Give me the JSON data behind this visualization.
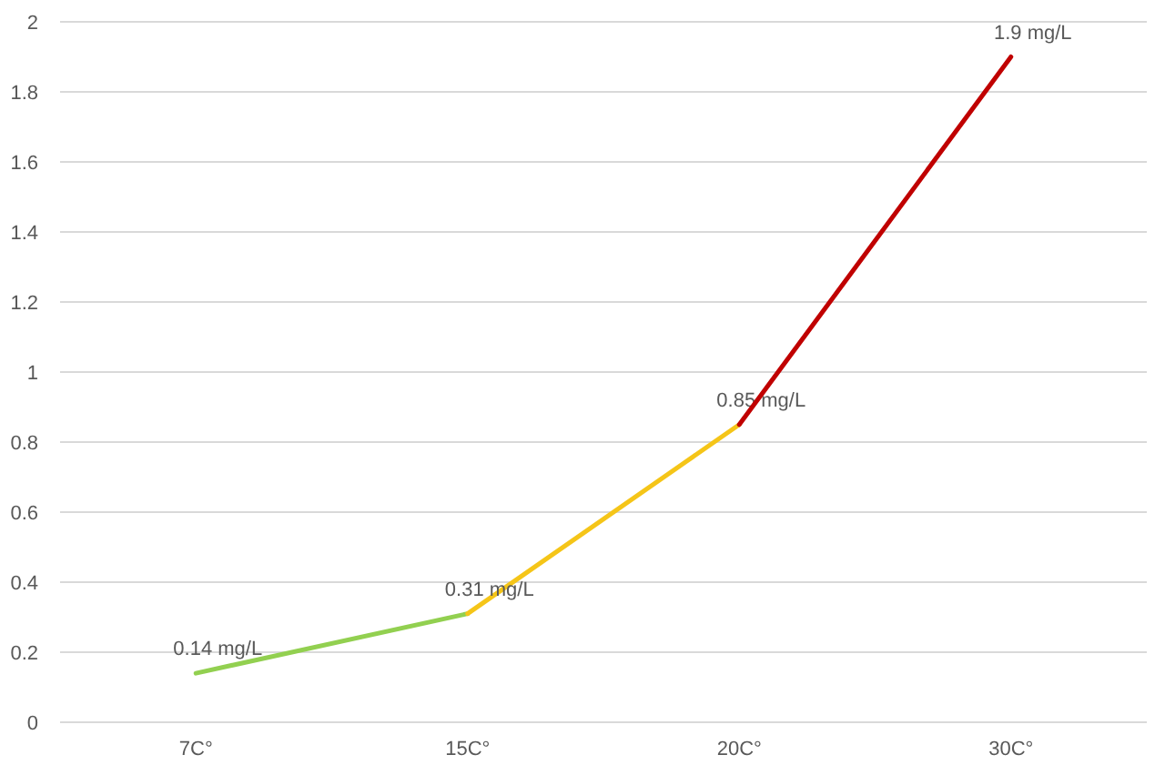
{
  "chart_data": {
    "type": "line",
    "categories": [
      "7C°",
      "15C°",
      "20C°",
      "30C°"
    ],
    "series": [
      {
        "color": "#92d050",
        "values": [
          0.14,
          0.31,
          null,
          null
        ],
        "value_labels": [
          "0.14 mg/L",
          null,
          null,
          null
        ]
      },
      {
        "color": "#f5c518",
        "values": [
          null,
          0.31,
          0.85,
          null
        ],
        "value_labels": [
          null,
          "0.31 mg/L",
          "0.85 mg/L",
          null
        ]
      },
      {
        "color": "#c00000",
        "values": [
          null,
          null,
          0.85,
          1.9
        ],
        "value_labels": [
          null,
          null,
          null,
          "1.9 mg/L"
        ]
      }
    ],
    "ylim": [
      0,
      2
    ],
    "yticks": [
      0,
      0.2,
      0.4,
      0.6,
      0.8,
      1,
      1.2,
      1.4,
      1.6,
      1.8,
      2
    ],
    "grid": "y",
    "marker": "none",
    "line_style": "solid"
  }
}
